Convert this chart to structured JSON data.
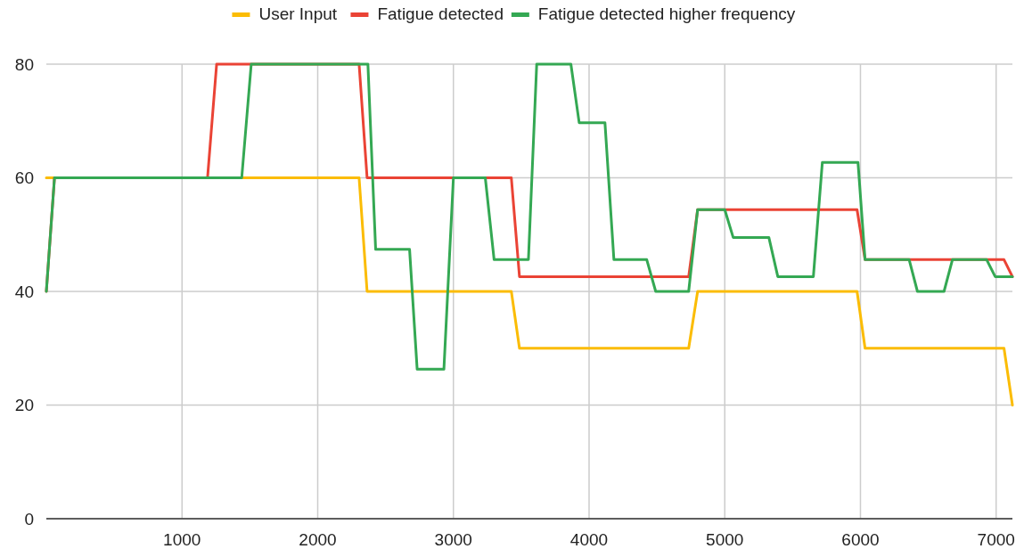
{
  "chart_data": {
    "type": "line",
    "xlim": [
      0,
      7120
    ],
    "ylim": [
      0,
      80
    ],
    "xticks": [
      1000,
      2000,
      3000,
      4000,
      5000,
      6000,
      7000
    ],
    "yticks": [
      0,
      20,
      40,
      60,
      80
    ],
    "grid": true,
    "legend": "top",
    "marker": "none",
    "line_style": "solid",
    "series": [
      {
        "name": "User Input",
        "color": "#fbbc04",
        "x": [
          0,
          2305,
          2364,
          3427,
          3487,
          4734,
          4800,
          5975,
          6034,
          7058,
          7120
        ],
        "values": [
          60,
          60,
          40,
          40,
          30,
          30,
          40,
          40,
          30,
          30,
          20
        ]
      },
      {
        "name": "Fatigue detected",
        "color": "#ea4335",
        "x": [
          0,
          60,
          1188,
          1255,
          2305,
          2364,
          3427,
          3487,
          4734,
          4800,
          5975,
          6034,
          7058,
          7120
        ],
        "values": [
          40,
          60,
          60,
          80,
          80,
          60,
          60,
          42.6,
          42.6,
          54.4,
          54.4,
          45.6,
          45.6,
          42.6
        ]
      },
      {
        "name": "Fatigue detected higher frequency",
        "color": "#34a853",
        "x": [
          0,
          60,
          1440,
          1510,
          2370,
          2427,
          2677,
          2733,
          2930,
          3000,
          3235,
          3300,
          3553,
          3614,
          3866,
          3927,
          4117,
          4183,
          4425,
          4491,
          4734,
          4800,
          5000,
          5062,
          5325,
          5391,
          5653,
          5719,
          5982,
          6034,
          6359,
          6420,
          6616,
          6678,
          6930,
          6993,
          7120
        ],
        "values": [
          40,
          60,
          60,
          80,
          80,
          47.4,
          47.4,
          26.3,
          26.3,
          60,
          60,
          45.6,
          45.6,
          80,
          80,
          69.7,
          69.7,
          45.6,
          45.6,
          40,
          40,
          54.4,
          54.4,
          49.5,
          49.5,
          42.6,
          42.6,
          62.7,
          62.7,
          45.6,
          45.6,
          40,
          40,
          45.6,
          45.6,
          42.6,
          42.6
        ]
      }
    ]
  }
}
